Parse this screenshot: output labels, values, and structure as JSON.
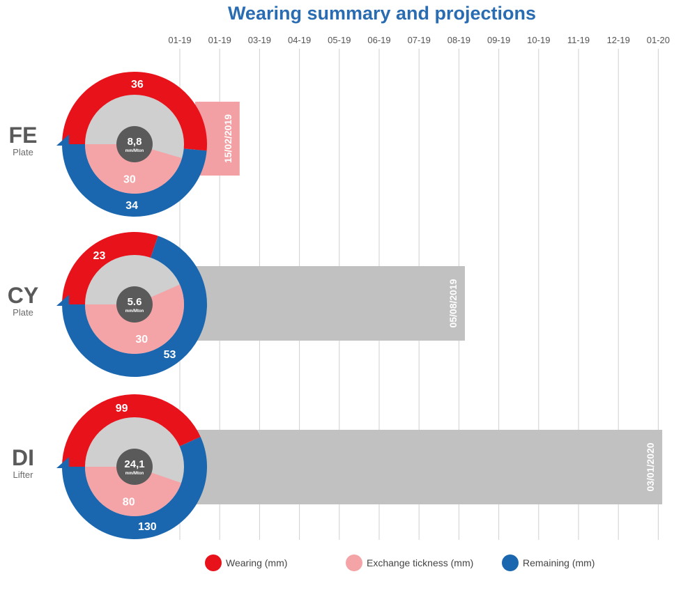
{
  "colors": {
    "wearing": "#e8121b",
    "exchange": "#f4a3a6",
    "remaining": "#1a67b0",
    "inner_gray": "#cfcfcf",
    "center_dark": "#5a5a5a",
    "bar_gray": "#c1c1c1",
    "bar_pink": "#f2a0a3",
    "title": "#2a6cb1"
  },
  "chart_data": {
    "type": "bar",
    "title": "Wearing summary and projections",
    "x_ticks": [
      "01-19",
      "01-19",
      "03-19",
      "04-19",
      "05-19",
      "06-19",
      "07-19",
      "08-19",
      "09-19",
      "10-19",
      "11-19",
      "12-19",
      "01-20"
    ],
    "rows": [
      {
        "code": "FE",
        "sub": "Plate",
        "wearing": 36,
        "exchange": 30,
        "remaining": 34,
        "rate": "8,8",
        "rate_unit": "mm/Mton",
        "end_date": "15/02/2019",
        "end_position": 1.5
      },
      {
        "code": "CY",
        "sub": "Plate",
        "wearing": 23,
        "exchange": 30,
        "remaining": 53,
        "rate": "5.6",
        "rate_unit": "mm/Mton",
        "end_date": "05/08/2019",
        "end_position": 7.15
      },
      {
        "code": "DI",
        "sub": "Lifter",
        "wearing": 99,
        "exchange": 80,
        "remaining": 130,
        "rate": "24,1",
        "rate_unit": "mm/Mton",
        "end_date": "03/01/2020",
        "end_position": 12.1
      }
    ],
    "legend": [
      {
        "key": "wearing",
        "label": "Wearing (mm)"
      },
      {
        "key": "exchange",
        "label": "Exchange tickness (mm)"
      },
      {
        "key": "remaining",
        "label": "Remaining (mm)"
      }
    ]
  }
}
